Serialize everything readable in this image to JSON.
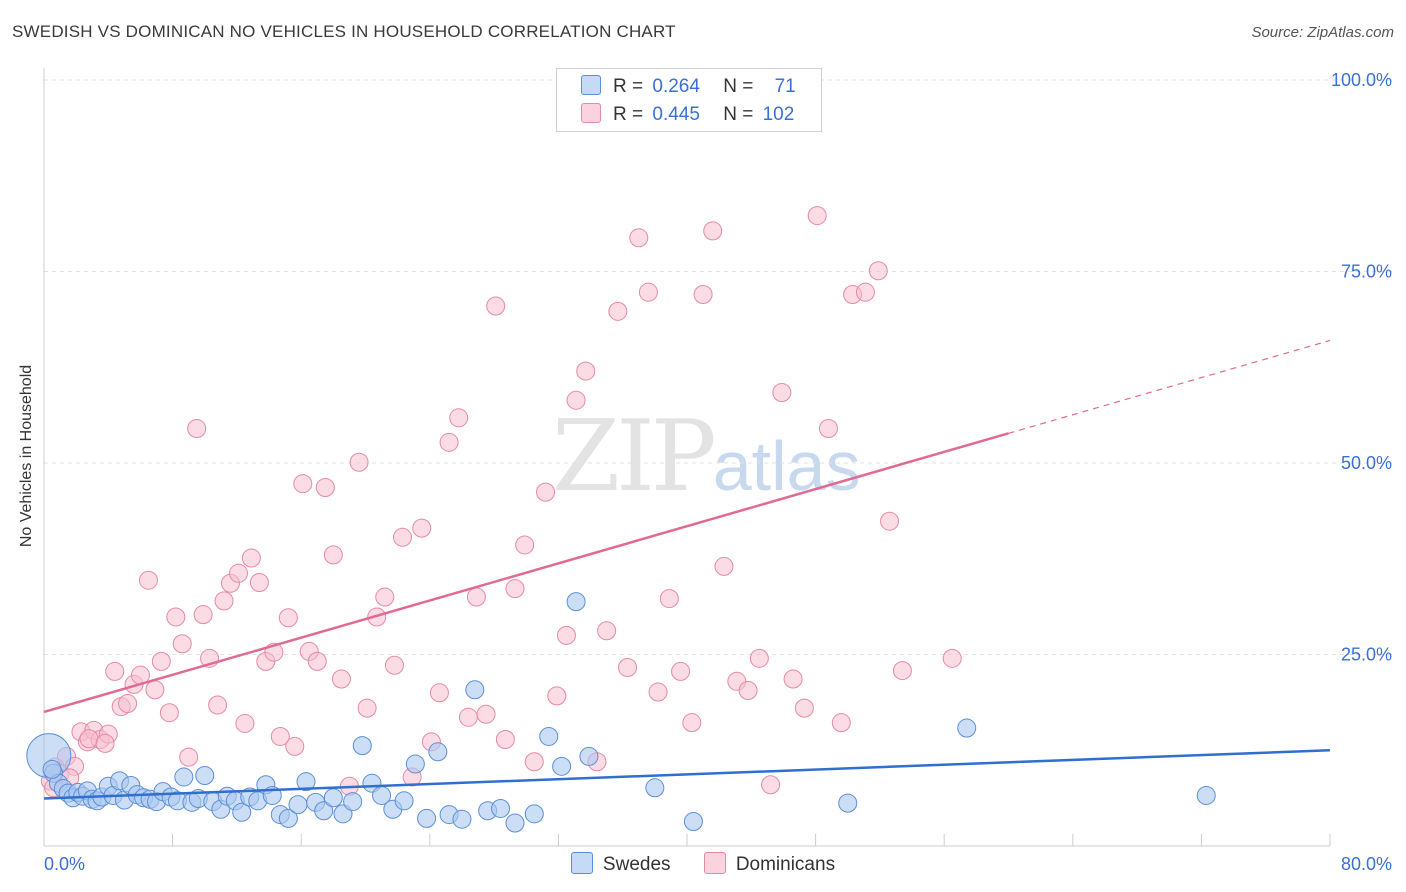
{
  "title": "SWEDISH VS DOMINICAN NO VEHICLES IN HOUSEHOLD CORRELATION CHART",
  "source": "Source: ZipAtlas.com",
  "watermark": {
    "zip": "ZIP",
    "atlas": "atlas"
  },
  "legend": {
    "swedes": {
      "r_label": "R =",
      "r_value": "0.264",
      "n_label": "N =",
      "n_value": "71"
    },
    "dominicans": {
      "r_label": "R =",
      "r_value": "0.445",
      "n_label": "N =",
      "n_value": "102"
    }
  },
  "bottom_legend": {
    "swedes": "Swedes",
    "dominicans": "Dominicans"
  },
  "colors": {
    "swedes_fill": "#aac8f0",
    "swedes_stroke": "#5b8fd6",
    "swedes_line": "#2f6fcf",
    "dominicans_fill": "#f7c0cf",
    "dominicans_stroke": "#e58aa6",
    "dominicans_line": "#e06a93",
    "grid": "#e2e2e2",
    "tick_label": "#3b6fd4"
  },
  "chart_data": {
    "type": "scatter",
    "title": "SWEDISH VS DOMINICAN NO VEHICLES IN HOUSEHOLD CORRELATION CHART",
    "xlabel": "",
    "ylabel": "No Vehicles in Household",
    "xlim": [
      0,
      80
    ],
    "ylim": [
      0,
      100
    ],
    "x_tick_labels": [
      "0.0%",
      "80.0%"
    ],
    "y_tick_values": [
      25,
      50,
      75,
      100
    ],
    "y_tick_labels": [
      "25.0%",
      "50.0%",
      "75.0%",
      "100.0%"
    ],
    "series": [
      {
        "name": "Swedes",
        "r": 0.264,
        "n": 71,
        "trend": {
          "x": [
            0,
            80
          ],
          "y": [
            6.2,
            12.5
          ],
          "dashed_from": null
        },
        "points": [
          [
            0.3,
            11.8
          ],
          [
            0.6,
            9.5
          ],
          [
            0.9,
            8.2
          ],
          [
            1.2,
            7.5
          ],
          [
            1.5,
            6.9
          ],
          [
            1.8,
            6.3
          ],
          [
            2.1,
            7.0
          ],
          [
            2.4,
            6.5
          ],
          [
            2.7,
            7.2
          ],
          [
            3.0,
            6.1
          ],
          [
            3.3,
            5.9
          ],
          [
            3.6,
            6.4
          ],
          [
            4.0,
            7.8
          ],
          [
            4.3,
            6.6
          ],
          [
            4.7,
            8.5
          ],
          [
            5.0,
            6.0
          ],
          [
            5.4,
            7.9
          ],
          [
            5.8,
            6.7
          ],
          [
            6.2,
            6.3
          ],
          [
            6.6,
            6.1
          ],
          [
            7.0,
            5.8
          ],
          [
            7.4,
            7.1
          ],
          [
            7.9,
            6.4
          ],
          [
            8.3,
            5.9
          ],
          [
            8.7,
            9.0
          ],
          [
            9.2,
            5.7
          ],
          [
            9.6,
            6.2
          ],
          [
            10.0,
            9.2
          ],
          [
            10.5,
            5.8
          ],
          [
            11.0,
            4.8
          ],
          [
            11.4,
            6.5
          ],
          [
            11.9,
            5.9
          ],
          [
            12.3,
            4.4
          ],
          [
            12.8,
            6.4
          ],
          [
            13.3,
            5.9
          ],
          [
            13.8,
            8.0
          ],
          [
            14.2,
            6.6
          ],
          [
            14.7,
            4.1
          ],
          [
            15.2,
            3.6
          ],
          [
            15.8,
            5.4
          ],
          [
            16.3,
            8.4
          ],
          [
            16.9,
            5.7
          ],
          [
            17.4,
            4.6
          ],
          [
            18.0,
            6.3
          ],
          [
            18.6,
            4.2
          ],
          [
            19.2,
            5.8
          ],
          [
            19.8,
            13.1
          ],
          [
            20.4,
            8.2
          ],
          [
            21.0,
            6.6
          ],
          [
            21.7,
            4.8
          ],
          [
            22.4,
            5.9
          ],
          [
            23.1,
            10.7
          ],
          [
            23.8,
            3.6
          ],
          [
            24.5,
            12.3
          ],
          [
            25.2,
            4.1
          ],
          [
            26.0,
            3.5
          ],
          [
            26.8,
            20.4
          ],
          [
            27.6,
            4.6
          ],
          [
            28.4,
            4.9
          ],
          [
            29.3,
            3.0
          ],
          [
            30.5,
            4.2
          ],
          [
            31.4,
            14.3
          ],
          [
            32.2,
            10.4
          ],
          [
            33.1,
            31.9
          ],
          [
            33.9,
            11.7
          ],
          [
            38.0,
            7.6
          ],
          [
            40.4,
            3.2
          ],
          [
            50.0,
            5.6
          ],
          [
            57.4,
            15.4
          ],
          [
            72.3,
            6.6
          ],
          [
            0.5,
            10.0
          ]
        ]
      },
      {
        "name": "Dominicans",
        "r": 0.445,
        "n": 102,
        "trend": {
          "x": [
            0,
            80
          ],
          "y": [
            17.5,
            66.0
          ],
          "dashed_from": 60
        },
        "points": [
          [
            0.4,
            8.5
          ],
          [
            0.7,
            10.3
          ],
          [
            1.0,
            9.5
          ],
          [
            1.4,
            11.7
          ],
          [
            1.9,
            10.4
          ],
          [
            2.3,
            14.9
          ],
          [
            2.7,
            13.6
          ],
          [
            3.1,
            15.1
          ],
          [
            3.5,
            13.9
          ],
          [
            4.0,
            14.6
          ],
          [
            4.4,
            22.8
          ],
          [
            4.8,
            18.2
          ],
          [
            5.2,
            18.6
          ],
          [
            5.6,
            21.1
          ],
          [
            6.0,
            22.3
          ],
          [
            6.5,
            34.7
          ],
          [
            6.9,
            20.4
          ],
          [
            7.3,
            24.1
          ],
          [
            7.8,
            17.4
          ],
          [
            8.2,
            29.9
          ],
          [
            8.6,
            26.4
          ],
          [
            9.0,
            11.6
          ],
          [
            9.5,
            54.5
          ],
          [
            9.9,
            30.2
          ],
          [
            10.3,
            24.5
          ],
          [
            10.8,
            18.4
          ],
          [
            11.2,
            32.0
          ],
          [
            11.6,
            34.3
          ],
          [
            12.1,
            35.6
          ],
          [
            12.5,
            16.0
          ],
          [
            12.9,
            37.6
          ],
          [
            13.4,
            34.4
          ],
          [
            13.8,
            24.1
          ],
          [
            14.3,
            25.3
          ],
          [
            14.7,
            14.3
          ],
          [
            15.2,
            29.8
          ],
          [
            15.6,
            13.0
          ],
          [
            16.1,
            47.3
          ],
          [
            16.5,
            25.4
          ],
          [
            17.0,
            24.1
          ],
          [
            17.5,
            46.8
          ],
          [
            18.0,
            38.0
          ],
          [
            18.5,
            21.8
          ],
          [
            19.0,
            7.8
          ],
          [
            19.6,
            50.1
          ],
          [
            20.1,
            18.0
          ],
          [
            20.7,
            29.9
          ],
          [
            21.2,
            32.5
          ],
          [
            21.8,
            23.6
          ],
          [
            22.3,
            40.3
          ],
          [
            22.9,
            9.0
          ],
          [
            23.5,
            41.5
          ],
          [
            24.1,
            13.6
          ],
          [
            24.6,
            20.0
          ],
          [
            25.2,
            52.7
          ],
          [
            25.8,
            55.9
          ],
          [
            26.4,
            16.8
          ],
          [
            26.9,
            32.5
          ],
          [
            27.5,
            17.2
          ],
          [
            28.1,
            70.5
          ],
          [
            28.7,
            13.9
          ],
          [
            29.3,
            33.6
          ],
          [
            29.9,
            39.3
          ],
          [
            30.5,
            11.0
          ],
          [
            31.2,
            46.2
          ],
          [
            31.9,
            19.6
          ],
          [
            32.5,
            27.5
          ],
          [
            33.1,
            58.2
          ],
          [
            33.7,
            62.0
          ],
          [
            34.4,
            11.0
          ],
          [
            35.0,
            28.1
          ],
          [
            35.7,
            69.8
          ],
          [
            36.3,
            23.3
          ],
          [
            37.0,
            79.4
          ],
          [
            37.6,
            72.3
          ],
          [
            38.2,
            20.1
          ],
          [
            38.9,
            32.3
          ],
          [
            39.6,
            22.8
          ],
          [
            40.3,
            16.1
          ],
          [
            41.0,
            72.0
          ],
          [
            41.6,
            80.3
          ],
          [
            42.3,
            36.5
          ],
          [
            43.1,
            21.5
          ],
          [
            43.8,
            20.3
          ],
          [
            44.5,
            24.5
          ],
          [
            45.2,
            8.0
          ],
          [
            45.9,
            59.2
          ],
          [
            46.6,
            21.8
          ],
          [
            47.3,
            18.0
          ],
          [
            48.1,
            82.3
          ],
          [
            48.8,
            54.5
          ],
          [
            49.6,
            16.1
          ],
          [
            50.3,
            72.0
          ],
          [
            51.1,
            72.3
          ],
          [
            51.9,
            75.1
          ],
          [
            52.6,
            42.4
          ],
          [
            53.4,
            22.9
          ],
          [
            56.5,
            24.5
          ],
          [
            0.6,
            7.6
          ],
          [
            1.6,
            8.9
          ],
          [
            2.8,
            14.0
          ],
          [
            3.8,
            13.4
          ]
        ]
      }
    ]
  }
}
